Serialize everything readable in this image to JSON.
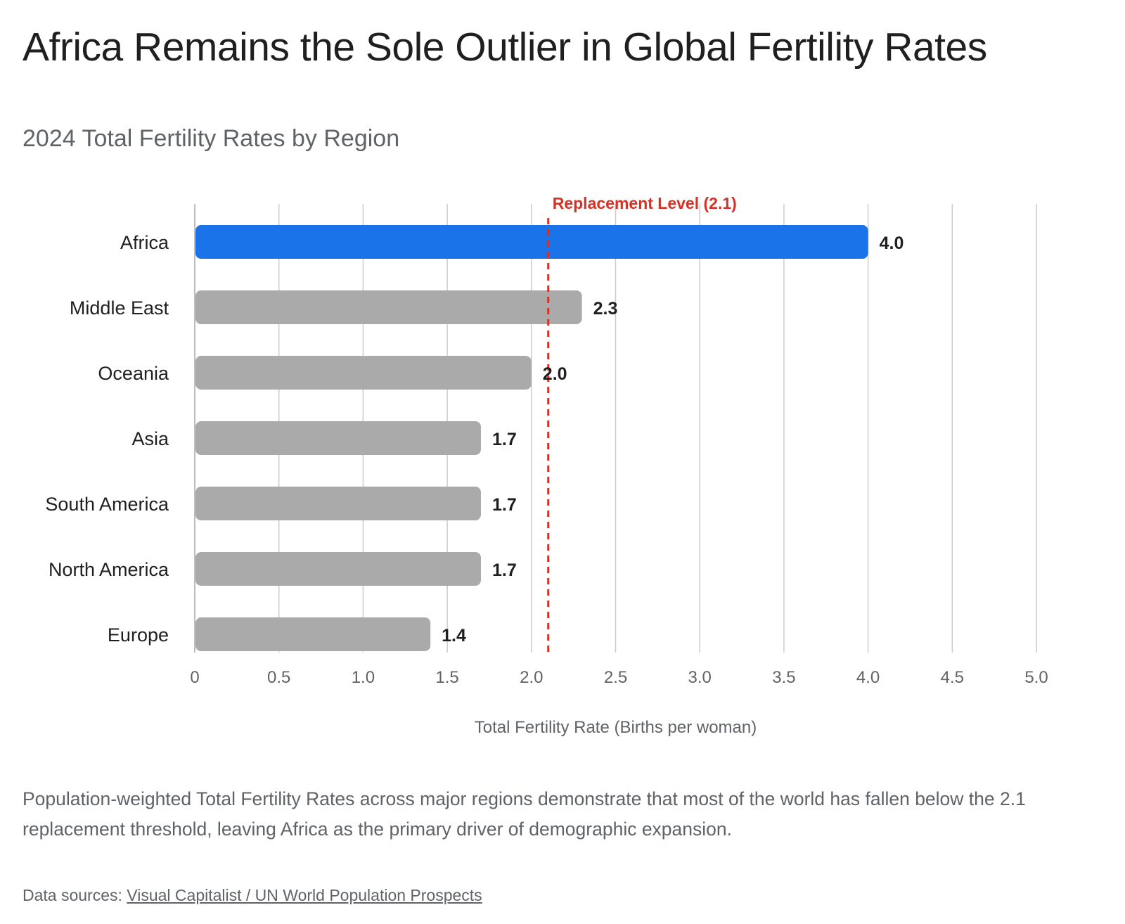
{
  "header": {
    "title": "Africa Remains the Sole Outlier in Global Fertility Rates",
    "subtitle": "2024 Total Fertility Rates by Region"
  },
  "chart_data": {
    "type": "bar",
    "orientation": "horizontal",
    "categories": [
      "Africa",
      "Middle East",
      "Oceania",
      "Asia",
      "South America",
      "North America",
      "Europe"
    ],
    "values": [
      4.0,
      2.3,
      2.0,
      1.7,
      1.7,
      1.7,
      1.4
    ],
    "value_labels": [
      "4.0",
      "2.3",
      "2.0",
      "1.7",
      "1.7",
      "1.7",
      "1.4"
    ],
    "highlight": "Africa",
    "colors": {
      "highlight": "#1a73e8",
      "default": "#aaaaaa",
      "reference_line": "#d93025",
      "grid": "#cccccc"
    },
    "xlabel": "Total Fertility Rate (Births per woman)",
    "ylabel": "",
    "xlim": [
      0,
      5.0
    ],
    "xticks": [
      0,
      0.5,
      1.0,
      1.5,
      2.0,
      2.5,
      3.0,
      3.5,
      4.0,
      4.5,
      5.0
    ],
    "xtick_labels": [
      "0",
      "0.5",
      "1.0",
      "1.5",
      "2.0",
      "2.5",
      "3.0",
      "3.5",
      "4.0",
      "4.5",
      "5.0"
    ],
    "grid": true,
    "reference_line": {
      "value": 2.1,
      "label": "Replacement Level (2.1)",
      "style": "dashed"
    }
  },
  "footer": {
    "caption": "Population-weighted Total Fertility Rates across major regions demonstrate that most of the world has fallen below the 2.1 replacement threshold, leaving Africa as the primary driver of demographic expansion.",
    "sources_prefix": "Data sources: ",
    "sources_link": "Visual Capitalist / UN World Population Prospects"
  }
}
